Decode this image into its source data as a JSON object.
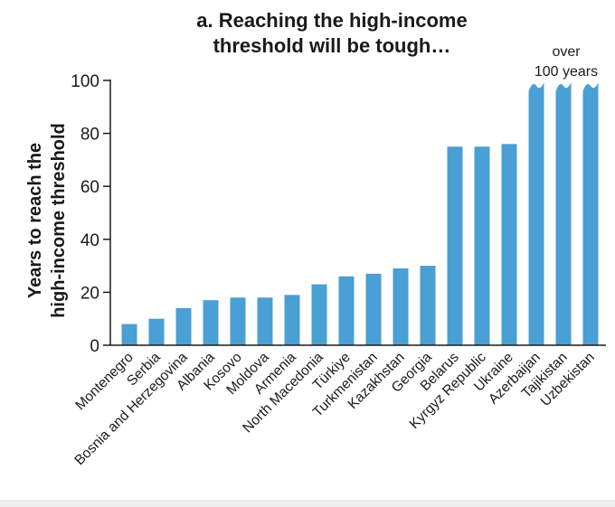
{
  "chart_data": {
    "type": "bar",
    "title_lines": [
      "a. Reaching the high-income",
      "threshold will be tough…"
    ],
    "ylabel_lines": [
      "Years to reach the",
      "high-income threshold"
    ],
    "xlabel": "",
    "ylim": [
      0,
      100
    ],
    "yticks": [
      0,
      20,
      40,
      60,
      80,
      100
    ],
    "grid": false,
    "color": "#4a9fd4",
    "categories": [
      "Montenegro",
      "Serbia",
      "Bosnia and Herzegovina",
      "Albania",
      "Kosovo",
      "Moldova",
      "Armenia",
      "North Macedonia",
      "Türkiye",
      "Turkmenistan",
      "Kazakhstan",
      "Georgia",
      "Belarus",
      "Kyrgyz Republic",
      "Ukraine",
      "Azerbaijan",
      "Tajikistan",
      "Uzbekistan"
    ],
    "values": [
      8,
      10,
      14,
      17,
      18,
      18,
      19,
      23,
      26,
      27,
      29,
      30,
      75,
      75,
      76,
      100,
      100,
      100
    ],
    "truncated": [
      false,
      false,
      false,
      false,
      false,
      false,
      false,
      false,
      false,
      false,
      false,
      false,
      false,
      false,
      false,
      true,
      true,
      true
    ],
    "annotation_lines": [
      "over",
      "100 years"
    ]
  }
}
